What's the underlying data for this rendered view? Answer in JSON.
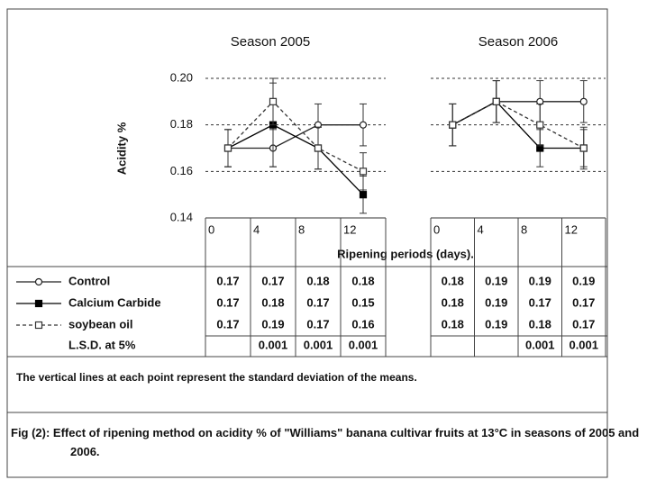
{
  "chart_data": [
    {
      "type": "line",
      "title": "Season 2005",
      "ylabel": "Acidity %",
      "xlabel": "Ripening periods (days).",
      "categories": [
        "0",
        "4",
        "8",
        "12"
      ],
      "ylim": [
        0.14,
        0.2
      ],
      "yticks": [
        0.14,
        0.16,
        0.18,
        {
          "value": 0.2,
          "label": "0.20"
        }
      ],
      "grid": true,
      "series": [
        {
          "name": "Control",
          "color": "#222222",
          "marker": "circle",
          "dash": false,
          "values": [
            0.17,
            0.17,
            0.18,
            0.18
          ],
          "errors": [
            0.008,
            0.008,
            0.009,
            0.009
          ]
        },
        {
          "name": "Calcium Carbide",
          "color": "#000000",
          "marker": "square-filled",
          "dash": false,
          "values": [
            0.17,
            0.18,
            0.17,
            0.15
          ],
          "errors": [
            0.008,
            0.018,
            0.009,
            0.008
          ]
        },
        {
          "name": "soybean oil",
          "color": "#333333",
          "marker": "square",
          "dash": true,
          "values": [
            0.17,
            0.19,
            0.17,
            0.16
          ],
          "errors": [
            0.008,
            0.01,
            0.009,
            0.008
          ]
        }
      ],
      "lsd_label": "L.S.D. at 5%",
      "lsd": [
        null,
        0.001,
        0.001,
        0.001
      ]
    },
    {
      "type": "line",
      "title": "Season 2006",
      "categories": [
        "0",
        "4",
        "8",
        "12"
      ],
      "ylim": [
        0.14,
        0.2
      ],
      "yticks": [
        0.14,
        0.16,
        0.18,
        0.2
      ],
      "grid": true,
      "series": [
        {
          "color": "#222222",
          "marker": "circle",
          "dash": false,
          "values": [
            0.18,
            0.19,
            0.19,
            0.19
          ],
          "errors": [
            0.009,
            0.009,
            0.009,
            0.009
          ]
        },
        {
          "color": "#000000",
          "marker": "square-filled",
          "dash": false,
          "values": [
            0.18,
            0.19,
            0.17,
            0.17
          ],
          "errors": [
            0.009,
            0.009,
            0.008,
            0.008
          ]
        },
        {
          "color": "#333333",
          "marker": "square",
          "dash": true,
          "values": [
            0.18,
            0.19,
            0.18,
            0.17
          ],
          "errors": [
            0.009,
            0.009,
            0.009,
            0.009
          ]
        }
      ],
      "lsd": [
        null,
        null,
        0.001,
        0.001
      ]
    }
  ],
  "note": "The vertical lines at each point represent the standard deviation of the means.",
  "caption": "Fig (2): Effect of ripening method on acidity % of  \"Williams\" banana cultivar fruits at 13°C in seasons of 2005 and 2006."
}
